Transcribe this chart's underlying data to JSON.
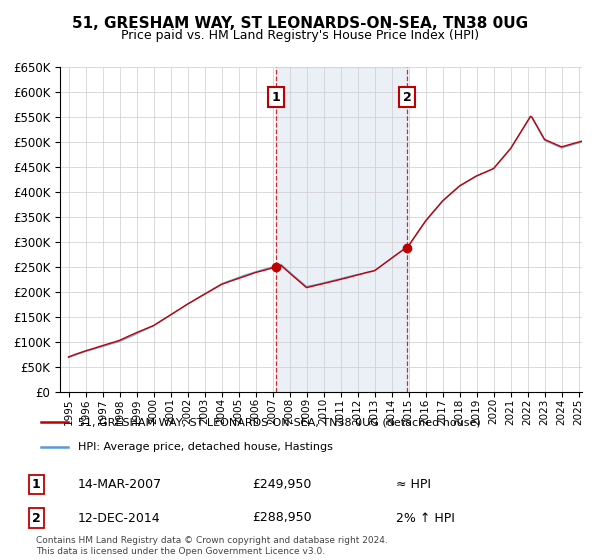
{
  "title": "51, GRESHAM WAY, ST LEONARDS-ON-SEA, TN38 0UG",
  "subtitle": "Price paid vs. HM Land Registry's House Price Index (HPI)",
  "legend_line1": "51, GRESHAM WAY, ST LEONARDS-ON-SEA, TN38 0UG (detached house)",
  "legend_line2": "HPI: Average price, detached house, Hastings",
  "annotation1_label": "1",
  "annotation1_date": "14-MAR-2007",
  "annotation1_price": "£249,950",
  "annotation1_hpi": "≈ HPI",
  "annotation2_label": "2",
  "annotation2_date": "12-DEC-2014",
  "annotation2_price": "£288,950",
  "annotation2_hpi": "2% ↑ HPI",
  "footer": "Contains HM Land Registry data © Crown copyright and database right 2024.\nThis data is licensed under the Open Government Licence v3.0.",
  "hpi_color": "#5b9bd5",
  "price_color": "#c00000",
  "annotation_color": "#c00000",
  "bg_shade_color": "#dce6f1",
  "ylim_min": 0,
  "ylim_max": 650000,
  "yticks": [
    0,
    50000,
    100000,
    150000,
    200000,
    250000,
    300000,
    350000,
    400000,
    450000,
    500000,
    550000,
    600000,
    650000
  ],
  "sale1_year": 2007.2,
  "sale2_year": 2014.92,
  "sale1_price": 249950,
  "sale2_price": 288950,
  "xlim_min": 1994.5,
  "xlim_max": 2025.2
}
